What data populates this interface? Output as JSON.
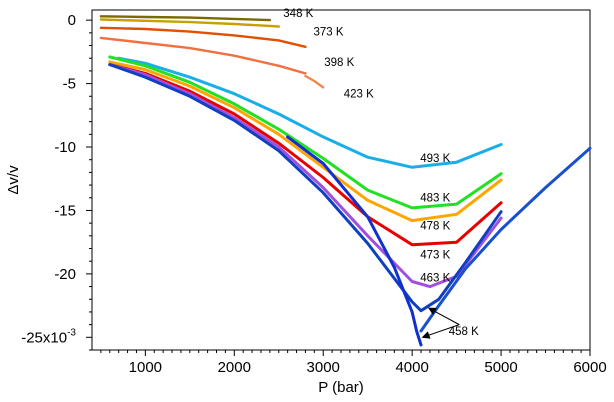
{
  "chart_data": {
    "type": "line",
    "xlabel": "P (bar)",
    "ylabel": "Δv/v",
    "xlim": [
      400,
      6000
    ],
    "ylim": [
      -26,
      0.8
    ],
    "x_ticks": [
      1000,
      2000,
      3000,
      4000,
      5000,
      6000
    ],
    "y_ticks": [
      {
        "value": 0,
        "label": "0"
      },
      {
        "value": -5,
        "label": "-5"
      },
      {
        "value": -10,
        "label": "-10"
      },
      {
        "value": -15,
        "label": "-15"
      },
      {
        "value": -20,
        "label": "-20"
      },
      {
        "value": -25,
        "label": "-25x10",
        "exponent": "-3"
      }
    ],
    "grid": false,
    "series": [
      {
        "name": "348 K",
        "color": "#7a6a00",
        "x": [
          500,
          1000,
          1500,
          2000,
          2400
        ],
        "y": [
          0.3,
          0.25,
          0.2,
          0.1,
          0
        ]
      },
      {
        "name": "",
        "color": "#c8a000",
        "x": [
          500,
          1000,
          1500,
          2000,
          2500
        ],
        "y": [
          0.05,
          -0.05,
          -0.15,
          -0.3,
          -0.5
        ]
      },
      {
        "name": "373 K",
        "color": "#e05000",
        "x": [
          500,
          1000,
          1500,
          2000,
          2500,
          2800
        ],
        "y": [
          -0.6,
          -0.7,
          -0.9,
          -1.2,
          -1.6,
          -2.1
        ]
      },
      {
        "name": "398 K",
        "color": "#f07040",
        "x": [
          500,
          1000,
          1500,
          2000,
          2500,
          2800
        ],
        "y": [
          -1.4,
          -1.8,
          -2.2,
          -2.8,
          -3.6,
          -4.2
        ]
      },
      {
        "name": "423 K",
        "color": "#f08850",
        "x": [
          2800,
          2900,
          3000
        ],
        "y": [
          -4.4,
          -4.8,
          -5.3
        ]
      },
      {
        "name": "493 K",
        "color": "#1aaee8",
        "x": [
          700,
          1000,
          1500,
          2000,
          2500,
          3000,
          3500,
          4000,
          4500,
          5000
        ],
        "y": [
          -3,
          -3.4,
          -4.5,
          -5.8,
          -7.4,
          -9.2,
          -10.8,
          -11.6,
          -11.2,
          -9.8
        ]
      },
      {
        "name": "483 K",
        "color": "#22e022",
        "x": [
          600,
          1000,
          1500,
          2000,
          2500,
          3000,
          3500,
          4000,
          4500,
          5000
        ],
        "y": [
          -2.9,
          -3.6,
          -4.9,
          -6.6,
          -8.6,
          -10.9,
          -13.4,
          -14.8,
          -14.5,
          -12.1
        ]
      },
      {
        "name": "478 K",
        "color": "#ffa500",
        "x": [
          600,
          1000,
          1500,
          2000,
          2500,
          3000,
          3500,
          4000,
          4500,
          5000
        ],
        "y": [
          -3.3,
          -3.9,
          -5.2,
          -6.9,
          -9.0,
          -11.6,
          -14.2,
          -15.8,
          -15.3,
          -12.6
        ]
      },
      {
        "name": "473 K",
        "color": "#e80000",
        "x": [
          600,
          1000,
          1500,
          2000,
          2500,
          3000,
          3500,
          4000,
          4500,
          5000
        ],
        "y": [
          -3.5,
          -4.2,
          -5.6,
          -7.4,
          -9.7,
          -12.4,
          -15.5,
          -17.7,
          -17.5,
          -14.4
        ]
      },
      {
        "name": "463 K",
        "color": "#a050e0",
        "x": [
          600,
          1000,
          1500,
          2000,
          2500,
          3000,
          3500,
          4000,
          4200,
          4500,
          5000
        ],
        "y": [
          -3.5,
          -4.3,
          -5.8,
          -7.7,
          -10.0,
          -13.2,
          -17.0,
          -20.6,
          -21.0,
          -20.2,
          -15.6
        ]
      },
      {
        "name": "458 K",
        "color": "#1040c0",
        "x": [
          600,
          1000,
          1500,
          2000,
          2500,
          3000,
          3500,
          4000,
          4100,
          4300,
          4600,
          5000
        ],
        "y": [
          -3.5,
          -4.5,
          -6.0,
          -7.9,
          -10.3,
          -13.6,
          -17.6,
          -22.2,
          -22.9,
          -22.0,
          -19.1,
          -15.1
        ]
      },
      {
        "name": "",
        "color": "#1030d0",
        "x": [
          2600,
          3000,
          3500,
          3800,
          4000,
          4050,
          4100
        ],
        "y": [
          -9.2,
          -11.3,
          -15.5,
          -19.5,
          -23.0,
          -24.5,
          -25.6
        ]
      },
      {
        "name": "",
        "color": "#1850d0",
        "x": [
          4100,
          4300,
          4600,
          5000,
          5500,
          6000
        ],
        "y": [
          -24.5,
          -22.5,
          -19.6,
          -16.5,
          -13.2,
          -10.1
        ]
      }
    ],
    "annotations": [
      {
        "text": "458 K",
        "arrows_to": [
          [
            4120,
            -22.7
          ],
          [
            4050,
            -25
          ]
        ]
      }
    ]
  }
}
